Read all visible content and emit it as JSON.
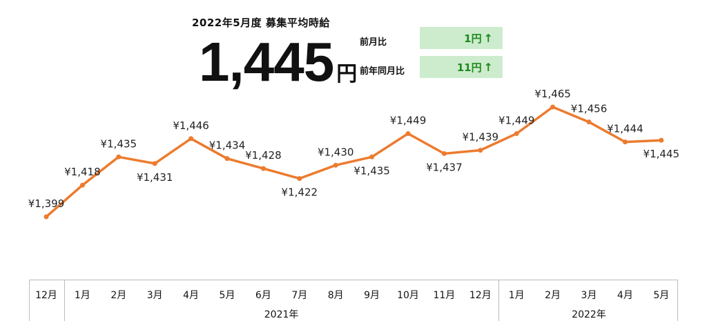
{
  "header": {
    "headline": "2022年5月度 募集平均時給",
    "big_value": "1,445",
    "big_unit": "円",
    "comparisons": [
      {
        "label": "前月比",
        "value": "1円",
        "arrow": "↑"
      },
      {
        "label": "前年同月比",
        "value": "11円",
        "arrow": "↑"
      }
    ]
  },
  "colors": {
    "line": "#ec7b2e",
    "badge_bg": "#cdeccd",
    "badge_text": "#1d8a1d"
  },
  "chart_data": {
    "type": "line",
    "title": "2022年5月度 募集平均時給",
    "categories": [
      "12月",
      "1月",
      "2月",
      "3月",
      "4月",
      "5月",
      "6月",
      "7月",
      "8月",
      "9月",
      "10月",
      "11月",
      "12月",
      "1月",
      "2月",
      "3月",
      "4月",
      "5月"
    ],
    "values": [
      1399,
      1418,
      1435,
      1431,
      1446,
      1434,
      1428,
      1422,
      1430,
      1435,
      1449,
      1437,
      1439,
      1449,
      1465,
      1456,
      1444,
      1445
    ],
    "labels": [
      "¥1,399",
      "¥1,418",
      "¥1,435",
      "¥1,431",
      "¥1,446",
      "¥1,434",
      "¥1,428",
      "¥1,422",
      "¥1,430",
      "¥1,435",
      "¥1,449",
      "¥1,437",
      "¥1,439",
      "¥1,449",
      "¥1,465",
      "¥1,456",
      "¥1,444",
      "¥1,445"
    ],
    "year_groups": [
      {
        "label": "",
        "from": 0,
        "to": 0
      },
      {
        "label": "2021年",
        "from": 1,
        "to": 12
      },
      {
        "label": "2022年",
        "from": 13,
        "to": 17
      }
    ],
    "ylim": [
      1399,
      1465
    ],
    "grid": false,
    "legend": "none"
  }
}
